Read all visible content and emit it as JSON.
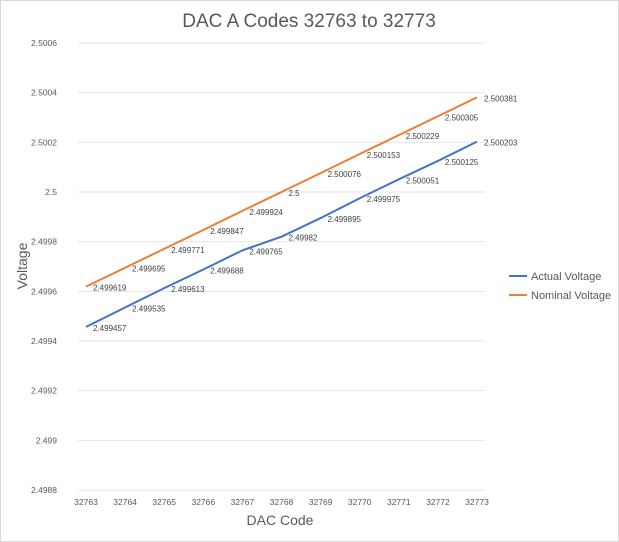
{
  "chart_data": {
    "type": "line",
    "title": "DAC A Codes 32763 to 32773",
    "xlabel": "DAC Code",
    "ylabel": "Voltage",
    "x": [
      32763,
      32764,
      32765,
      32766,
      32767,
      32768,
      32769,
      32770,
      32771,
      32772,
      32773
    ],
    "ylim": [
      2.4988,
      2.5006
    ],
    "yticks": [
      2.4988,
      2.499,
      2.4992,
      2.4994,
      2.4996,
      2.4998,
      2.5,
      2.5002,
      2.5004,
      2.5006
    ],
    "ytick_labels": [
      "2.4988",
      "2.499",
      "2.4992",
      "2.4994",
      "2.4996",
      "2.4998",
      "2.5",
      "2.5002",
      "2.5004",
      "2.5006"
    ],
    "xtick_labels": [
      "32763",
      "32764",
      "32765",
      "32766",
      "32767",
      "32768",
      "32769",
      "32770",
      "32771",
      "32772",
      "32773"
    ],
    "grid": "horizontal",
    "legend_position": "right",
    "series": [
      {
        "name": "Actual Voltage",
        "color": "#4472c4",
        "values": [
          2.499457,
          2.499535,
          2.499613,
          2.499688,
          2.499765,
          2.49982,
          2.499895,
          2.499975,
          2.500051,
          2.500125,
          2.500203
        ],
        "labels": [
          "2.499457",
          "2.499535",
          "2.499613",
          "2.499688",
          "2.499765",
          "2.49982",
          "2.499895",
          "2.499975",
          "2.500051",
          "2.500125",
          "2.500203"
        ]
      },
      {
        "name": "Nominal Voltage",
        "color": "#ed7d31",
        "values": [
          2.499619,
          2.499695,
          2.499771,
          2.499847,
          2.499924,
          2.5,
          2.500076,
          2.500153,
          2.500229,
          2.500305,
          2.500381
        ],
        "labels": [
          "2.499619",
          "2.499695",
          "2.499771",
          "2.499847",
          "2.499924",
          "2.5",
          "2.500076",
          "2.500153",
          "2.500229",
          "2.500305",
          "2.500381"
        ]
      }
    ]
  }
}
